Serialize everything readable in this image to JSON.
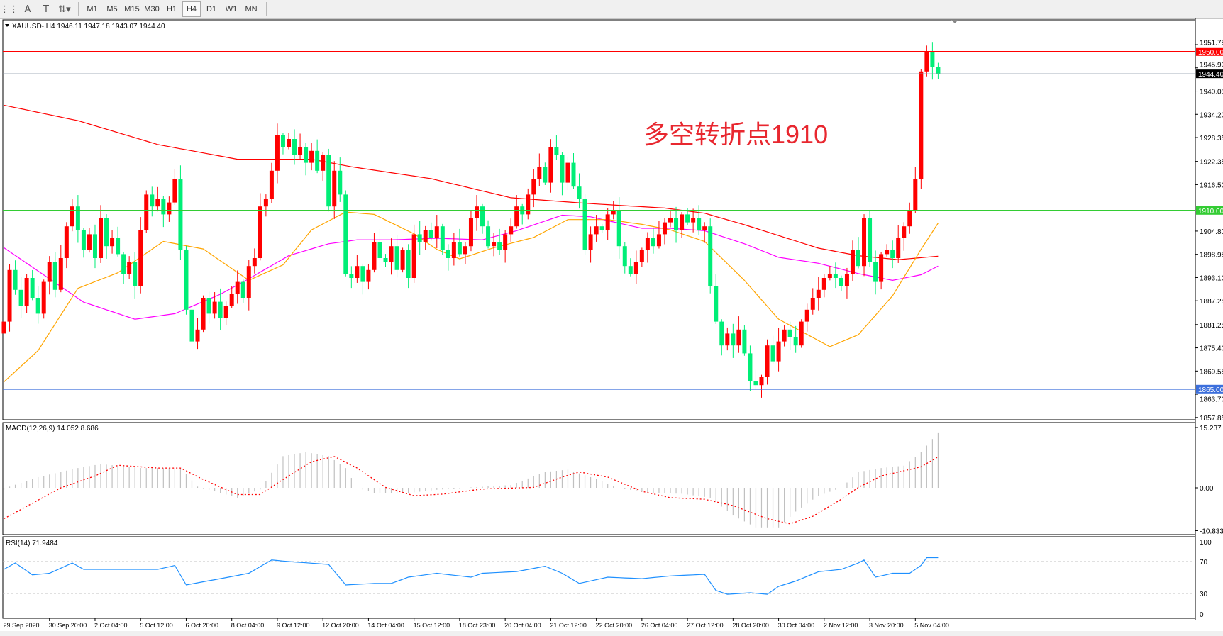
{
  "toolbar": {
    "tools": [
      {
        "name": "grid-lines-icon",
        "glyph": "⋮⋮"
      },
      {
        "name": "text-tool-icon",
        "glyph": "A"
      },
      {
        "name": "text-label-icon",
        "glyph": "T"
      },
      {
        "name": "arrows-icon",
        "glyph": "⇅▾"
      }
    ],
    "timeframes": [
      "M1",
      "M5",
      "M15",
      "M30",
      "H1",
      "H4",
      "D1",
      "W1",
      "MN"
    ],
    "active_timeframe": "H4"
  },
  "chart": {
    "symbol_header": "XAUUSD-,H4  1946.11 1947.18 1943.07 1944.40",
    "ohlc_last": {
      "open": 1946.11,
      "high": 1947.18,
      "low": 1943.07,
      "close": 1944.4
    },
    "annotation": "多空转折点1910",
    "colors": {
      "up": "#ff0000",
      "down": "#00ee77",
      "ma_long": "#ff0000",
      "ma_mid": "#ff00ff",
      "ma_short": "#ffa500",
      "annotation": "#e8272f"
    },
    "price_axis": {
      "ylim": [
        1857.85,
        1951.75
      ],
      "ticks": [
        "1951.75",
        "1945.90",
        "1940.05",
        "1934.20",
        "1928.35",
        "1922.35",
        "1916.50",
        "1904.80",
        "1898.95",
        "1893.10",
        "1887.25",
        "1881.25",
        "1875.40",
        "1869.55",
        "1863.70",
        "1857.85"
      ]
    },
    "levels": [
      {
        "price": 1950.0,
        "label": "1950.00",
        "color": "#ff0000"
      },
      {
        "price": 1944.4,
        "label": "1944.40",
        "color": "#000000",
        "line": "#8a99a6"
      },
      {
        "price": 1910.0,
        "label": "1910.00",
        "color": "#33cc33"
      },
      {
        "price": 1865.0,
        "label": "1865.00",
        "color": "#3c6fdc"
      }
    ],
    "closes": [
      1882,
      1895,
      1890,
      1886,
      1893,
      1888,
      1884,
      1892,
      1897,
      1890,
      1898,
      1906,
      1911,
      1905,
      1900,
      1904,
      1898,
      1908,
      1901,
      1903,
      1899,
      1894,
      1897,
      1891,
      1905,
      1914,
      1911,
      1913,
      1909,
      1912,
      1918,
      1900,
      1885,
      1877,
      1880,
      1888,
      1884,
      1887,
      1883,
      1886,
      1889,
      1892,
      1888,
      1896,
      1898,
      1911,
      1913,
      1920,
      1929,
      1926,
      1928,
      1924,
      1926,
      1922,
      1925,
      1920,
      1924,
      1911,
      1920,
      1914,
      1894,
      1893,
      1896,
      1892,
      1895,
      1902,
      1898,
      1897,
      1901,
      1895,
      1900,
      1893,
      1904,
      1902,
      1905,
      1903,
      1906,
      1900,
      1898,
      1902,
      1899,
      1901,
      1908,
      1911,
      1906,
      1901,
      1902,
      1900,
      1904,
      1906,
      1911,
      1909,
      1914,
      1918,
      1921,
      1917,
      1926,
      1924,
      1917,
      1922,
      1916,
      1913,
      1900,
      1904,
      1906,
      1905,
      1909,
      1910,
      1901,
      1896,
      1894,
      1897,
      1900,
      1903,
      1901,
      1904,
      1907,
      1908,
      1905,
      1909,
      1907,
      1908,
      1905,
      1906,
      1891,
      1882,
      1876,
      1879,
      1876,
      1880,
      1874,
      1867,
      1866,
      1868,
      1876,
      1872,
      1877,
      1880,
      1878,
      1876,
      1882,
      1885,
      1888,
      1890,
      1893,
      1894,
      1893,
      1891,
      1894,
      1900,
      1896,
      1908,
      1897,
      1892,
      1899,
      1900,
      1898,
      1903,
      1906,
      1910,
      1918,
      1945,
      1950,
      1946.11,
      1944.4
    ],
    "first_open": 1879,
    "ma_long": [
      [
        0,
        1936.5
      ],
      [
        13,
        1932.6
      ],
      [
        27,
        1926.6
      ],
      [
        41,
        1922.9
      ],
      [
        54,
        1922.9
      ],
      [
        61,
        1921
      ],
      [
        75,
        1918
      ],
      [
        89,
        1913.2
      ],
      [
        102,
        1911.8
      ],
      [
        116,
        1910.6
      ],
      [
        123,
        1909.3
      ],
      [
        130,
        1906.4
      ],
      [
        143,
        1900.5
      ],
      [
        150,
        1898.6
      ],
      [
        157,
        1897.6
      ],
      [
        165,
        1898.6
      ]
    ],
    "ma_mid": [
      [
        0,
        1900.6
      ],
      [
        8,
        1892.8
      ],
      [
        14,
        1886.9
      ],
      [
        23,
        1882.6
      ],
      [
        30,
        1884
      ],
      [
        38,
        1888.9
      ],
      [
        43,
        1892.8
      ],
      [
        50,
        1898.6
      ],
      [
        57,
        1901.6
      ],
      [
        62,
        1902.6
      ],
      [
        68,
        1902.6
      ],
      [
        76,
        1903
      ],
      [
        84,
        1902.6
      ],
      [
        90,
        1904.9
      ],
      [
        98,
        1908.8
      ],
      [
        103,
        1908.4
      ],
      [
        112,
        1905.5
      ],
      [
        117,
        1905.5
      ],
      [
        123,
        1904.9
      ],
      [
        130,
        1901.6
      ],
      [
        136,
        1898.2
      ],
      [
        143,
        1896.7
      ],
      [
        150,
        1894.1
      ],
      [
        156,
        1892.4
      ],
      [
        161,
        1893.8
      ],
      [
        165,
        1896.7
      ]
    ],
    "ma_short": [
      [
        0,
        1866.8
      ],
      [
        6,
        1874.7
      ],
      [
        13,
        1890.4
      ],
      [
        20,
        1894.3
      ],
      [
        28,
        1902.2
      ],
      [
        35,
        1900.3
      ],
      [
        43,
        1892.4
      ],
      [
        49,
        1896.3
      ],
      [
        54,
        1905.1
      ],
      [
        60,
        1909.6
      ],
      [
        65,
        1909
      ],
      [
        72,
        1904.1
      ],
      [
        76,
        1900.2
      ],
      [
        80,
        1897.8
      ],
      [
        86,
        1900.6
      ],
      [
        93,
        1903.2
      ],
      [
        99,
        1907.7
      ],
      [
        106,
        1907.7
      ],
      [
        112,
        1906.5
      ],
      [
        117,
        1905.1
      ],
      [
        123,
        1902.2
      ],
      [
        130,
        1892.4
      ],
      [
        136,
        1882.6
      ],
      [
        145,
        1875.7
      ],
      [
        150,
        1878.7
      ],
      [
        156,
        1888.5
      ],
      [
        161,
        1900.2
      ],
      [
        165,
        1909
      ]
    ]
  },
  "macd": {
    "label": "MACD(12,26,9) 14.052 8.686",
    "ylim": [
      -10.833,
      15.237
    ],
    "ticks": [
      "15.237",
      "0.00",
      "-10.833"
    ],
    "histogram": [
      [
        0,
        -0.5
      ],
      [
        1,
        0.3
      ],
      [
        6,
        2.7
      ],
      [
        13,
        5.0
      ],
      [
        17,
        6
      ],
      [
        24,
        5
      ],
      [
        31,
        5
      ],
      [
        34,
        0.3
      ],
      [
        38,
        -1.3
      ],
      [
        41,
        -2.5
      ],
      [
        45,
        -0.4
      ],
      [
        49,
        8
      ],
      [
        53,
        9
      ],
      [
        57,
        8
      ],
      [
        60,
        5
      ],
      [
        62,
        0
      ],
      [
        65,
        -1.3
      ],
      [
        71,
        -1.3
      ],
      [
        76,
        -0.5
      ],
      [
        82,
        0.1
      ],
      [
        89,
        0.7
      ],
      [
        95,
        4.0
      ],
      [
        99,
        4.6
      ],
      [
        103,
        2.7
      ],
      [
        108,
        0
      ],
      [
        113,
        -1.3
      ],
      [
        119,
        -1.5
      ],
      [
        124,
        -2.5
      ],
      [
        128,
        -7
      ],
      [
        132,
        -10
      ],
      [
        136,
        -10
      ],
      [
        139,
        -6
      ],
      [
        143,
        -2
      ],
      [
        147,
        0
      ],
      [
        150,
        4
      ],
      [
        154,
        5
      ],
      [
        158,
        5.6
      ],
      [
        161,
        9
      ],
      [
        164,
        14
      ],
      [
        165,
        15.2
      ]
    ],
    "signal": [
      [
        0,
        -7.8
      ],
      [
        5,
        -3.9
      ],
      [
        10,
        0
      ],
      [
        16,
        3.0
      ],
      [
        20,
        5.7
      ],
      [
        27,
        5.0
      ],
      [
        31,
        5.0
      ],
      [
        35,
        2.1
      ],
      [
        41,
        -1.7
      ],
      [
        45,
        -1.7
      ],
      [
        49,
        2.1
      ],
      [
        54,
        6.6
      ],
      [
        58,
        7.9
      ],
      [
        62,
        5
      ],
      [
        67,
        0.1
      ],
      [
        72,
        -2
      ],
      [
        77,
        -1.6
      ],
      [
        84,
        -0.3
      ],
      [
        93,
        0.1
      ],
      [
        98,
        2.7
      ],
      [
        101,
        4.0
      ],
      [
        106,
        2.7
      ],
      [
        112,
        -0.9
      ],
      [
        117,
        -2.5
      ],
      [
        123,
        -2.9
      ],
      [
        128,
        -4.5
      ],
      [
        134,
        -7.8
      ],
      [
        138,
        -9.1
      ],
      [
        142,
        -7.2
      ],
      [
        147,
        -2.9
      ],
      [
        150,
        0.1
      ],
      [
        154,
        3.0
      ],
      [
        161,
        5.3
      ],
      [
        165,
        8.686
      ]
    ]
  },
  "rsi": {
    "label": "RSI(14) 71.9484",
    "levels": [
      30,
      70
    ],
    "ticks": [
      "100",
      "70",
      "30",
      "0"
    ],
    "values": [
      [
        0,
        60.2
      ],
      [
        2,
        68.2
      ],
      [
        5,
        53.4
      ],
      [
        8,
        55.3
      ],
      [
        12,
        68.2
      ],
      [
        14,
        60.2
      ],
      [
        17,
        60.2
      ],
      [
        27,
        60.2
      ],
      [
        30,
        65.1
      ],
      [
        32,
        40.7
      ],
      [
        38,
        48.6
      ],
      [
        43,
        55.3
      ],
      [
        47,
        72
      ],
      [
        50,
        70
      ],
      [
        57,
        66.4
      ],
      [
        60,
        40.7
      ],
      [
        65,
        42.6
      ],
      [
        68,
        42.6
      ],
      [
        71,
        50.4
      ],
      [
        76,
        55.3
      ],
      [
        82,
        50.4
      ],
      [
        84,
        55.3
      ],
      [
        90,
        57.5
      ],
      [
        95,
        64.1
      ],
      [
        98,
        55.3
      ],
      [
        101,
        42.6
      ],
      [
        106,
        50.4
      ],
      [
        112,
        48.6
      ],
      [
        117,
        52
      ],
      [
        123,
        54
      ],
      [
        125,
        33.8
      ],
      [
        127,
        29
      ],
      [
        131,
        30.9
      ],
      [
        134,
        29
      ],
      [
        136,
        38.9
      ],
      [
        139,
        45.6
      ],
      [
        143,
        57.3
      ],
      [
        147,
        60.2
      ],
      [
        150,
        68.2
      ],
      [
        151,
        72
      ],
      [
        153,
        50.4
      ],
      [
        156,
        55.3
      ],
      [
        159,
        55.3
      ],
      [
        161,
        65.1
      ],
      [
        162,
        74.9
      ],
      [
        164,
        74.9
      ],
      [
        165,
        71.9484
      ]
    ]
  },
  "time_axis": [
    "29 Sep 2020",
    "30 Sep 20:00",
    "2 Oct 04:00",
    "5 Oct 12:00",
    "6 Oct 20:00",
    "8 Oct 04:00",
    "9 Oct 12:00",
    "12 Oct 20:00",
    "14 Oct 04:00",
    "15 Oct 12:00",
    "18 Oct 23:00",
    "20 Oct 04:00",
    "21 Oct 12:00",
    "22 Oct 20:00",
    "26 Oct 04:00",
    "27 Oct 12:00",
    "28 Oct 20:00",
    "30 Oct 04:00",
    "2 Nov 12:00",
    "3 Nov 20:00",
    "5 Nov 04:00"
  ]
}
